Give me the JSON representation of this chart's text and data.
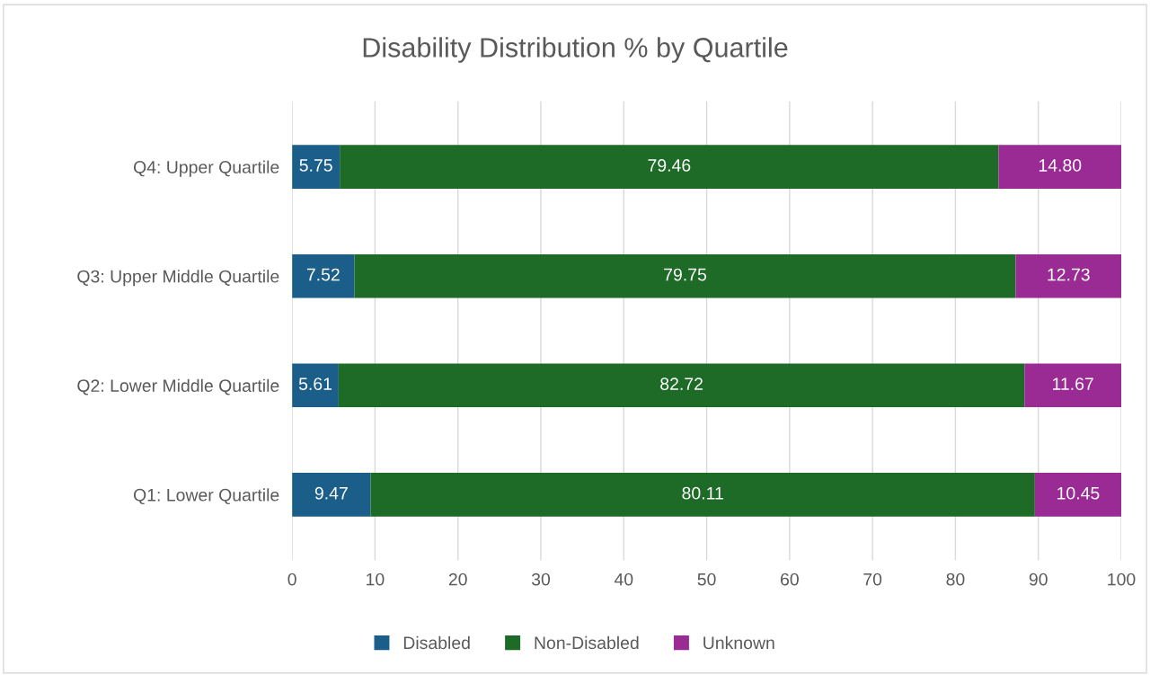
{
  "chart_data": {
    "type": "bar",
    "orientation": "horizontal",
    "stacked": true,
    "title": "Disability Distribution % by Quartile",
    "categories": [
      "Q4: Upper Quartile",
      "Q3: Upper Middle Quartile",
      "Q2: Lower Middle Quartile",
      "Q1: Lower Quartile"
    ],
    "series": [
      {
        "name": "Disabled",
        "color": "#1b5e8a",
        "values": [
          5.75,
          7.52,
          5.61,
          9.47
        ],
        "value_labels": [
          "5.75",
          "7.52",
          "5.61",
          "9.47"
        ]
      },
      {
        "name": "Non-Disabled",
        "color": "#1d6b27",
        "values": [
          79.46,
          79.75,
          82.72,
          80.11
        ],
        "value_labels": [
          "79.46",
          "79.75",
          "82.72",
          "80.11"
        ]
      },
      {
        "name": "Unknown",
        "color": "#9b2b94",
        "values": [
          14.8,
          12.73,
          11.67,
          10.45
        ],
        "value_labels": [
          "14.80",
          "12.73",
          "11.67",
          "10.45"
        ]
      }
    ],
    "xlim": [
      0,
      100
    ],
    "xticks": [
      0,
      10,
      20,
      30,
      40,
      50,
      60,
      70,
      80,
      90,
      100
    ],
    "grid": "x",
    "legend": "bottom"
  }
}
